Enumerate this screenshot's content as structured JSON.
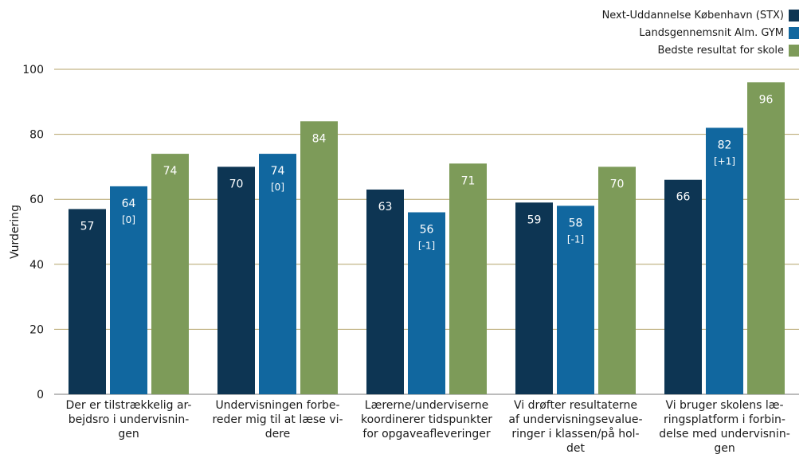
{
  "chart_data": {
    "type": "bar",
    "ylabel": "Vurdering",
    "xlabel": "",
    "ylim": [
      0,
      100
    ],
    "yticks": [
      0,
      20,
      40,
      60,
      80,
      100
    ],
    "grid": true,
    "legend_position": "top-right",
    "categories": [
      [
        "Der er tilstrækkelig ar-",
        "bejdsro i undervisnin-",
        "gen"
      ],
      [
        "Undervisningen forbe-",
        "reder mig til at læse vi-",
        "dere"
      ],
      [
        "Lærerne/underviserne",
        "koordinerer tidspunkter",
        "for opgaveafleveringer"
      ],
      [
        "Vi drøfter resultaterne",
        "af undervisningsevalue-",
        "ringer i klassen/på hol-",
        "det"
      ],
      [
        "Vi bruger skolens læ-",
        "ringsplatform  i forbin-",
        "delse med undervisnin-",
        "gen"
      ]
    ],
    "series": [
      {
        "name": "Next-Uddannelse København (STX)",
        "color": "#0d3553",
        "values": [
          57,
          70,
          63,
          59,
          66
        ]
      },
      {
        "name": "Landsgennemsnit Alm. GYM",
        "color": "#11679f",
        "values": [
          64,
          74,
          56,
          58,
          82
        ],
        "annotations": [
          "[0]",
          "[0]",
          "[-1]",
          "[-1]",
          "[+1]"
        ]
      },
      {
        "name": "Bedste resultat for skole",
        "color": "#7d9b59",
        "values": [
          74,
          84,
          71,
          70,
          96
        ]
      }
    ]
  }
}
